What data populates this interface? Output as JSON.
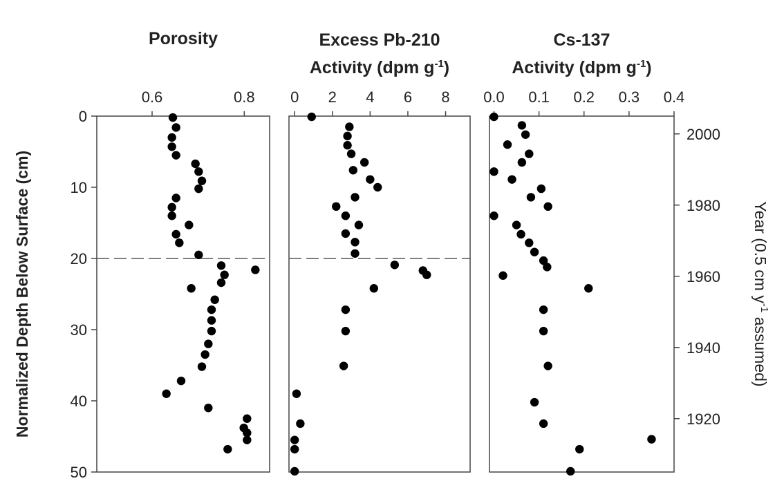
{
  "chart_data": [
    {
      "type": "scatter",
      "title": "Porosity",
      "x_ticks": [
        "0.6",
        "0.8"
      ],
      "xlim": [
        0.48,
        0.855
      ],
      "ylabel": "Normalized Depth Below Surface (cm)",
      "y_ticks": [
        "0",
        "10",
        "20",
        "30",
        "40",
        "50"
      ],
      "ylim": [
        0,
        50
      ],
      "y_inverted": true,
      "x_axis_position": "top",
      "reference_line_depth": 20,
      "points": [
        {
          "x": 0.645,
          "y": 0.2
        },
        {
          "x": 0.652,
          "y": 1.6
        },
        {
          "x": 0.643,
          "y": 3.0
        },
        {
          "x": 0.643,
          "y": 4.3
        },
        {
          "x": 0.652,
          "y": 5.5
        },
        {
          "x": 0.694,
          "y": 6.7
        },
        {
          "x": 0.701,
          "y": 7.8
        },
        {
          "x": 0.708,
          "y": 9.1
        },
        {
          "x": 0.701,
          "y": 10.2
        },
        {
          "x": 0.652,
          "y": 11.5
        },
        {
          "x": 0.643,
          "y": 12.8
        },
        {
          "x": 0.643,
          "y": 14.0
        },
        {
          "x": 0.68,
          "y": 15.3
        },
        {
          "x": 0.652,
          "y": 16.6
        },
        {
          "x": 0.659,
          "y": 17.8
        },
        {
          "x": 0.701,
          "y": 19.5
        },
        {
          "x": 0.75,
          "y": 21.0
        },
        {
          "x": 0.824,
          "y": 21.6
        },
        {
          "x": 0.757,
          "y": 22.3
        },
        {
          "x": 0.75,
          "y": 23.4
        },
        {
          "x": 0.685,
          "y": 24.2
        },
        {
          "x": 0.736,
          "y": 25.8
        },
        {
          "x": 0.729,
          "y": 27.2
        },
        {
          "x": 0.729,
          "y": 28.7
        },
        {
          "x": 0.729,
          "y": 30.2
        },
        {
          "x": 0.722,
          "y": 32.0
        },
        {
          "x": 0.715,
          "y": 33.5
        },
        {
          "x": 0.708,
          "y": 35.2
        },
        {
          "x": 0.663,
          "y": 37.2
        },
        {
          "x": 0.631,
          "y": 39.0
        },
        {
          "x": 0.722,
          "y": 41.0
        },
        {
          "x": 0.806,
          "y": 42.5
        },
        {
          "x": 0.799,
          "y": 43.8
        },
        {
          "x": 0.806,
          "y": 44.5
        },
        {
          "x": 0.806,
          "y": 45.5
        },
        {
          "x": 0.764,
          "y": 46.8
        }
      ]
    },
    {
      "type": "scatter",
      "title": "Excess Pb-210",
      "title_line2": "Activity (dpm g",
      "title_sup": "-1",
      "title_end": ")",
      "x_ticks": [
        "0",
        "2",
        "4",
        "6",
        "8"
      ],
      "xlim": [
        -0.3,
        9.3
      ],
      "ylim": [
        0,
        50
      ],
      "y_inverted": true,
      "x_axis_position": "top",
      "reference_line_depth": 20,
      "points": [
        {
          "x": 0.9,
          "y": 0.1
        },
        {
          "x": 2.9,
          "y": 1.5
        },
        {
          "x": 2.8,
          "y": 2.8
        },
        {
          "x": 2.8,
          "y": 4.1
        },
        {
          "x": 3.0,
          "y": 5.3
        },
        {
          "x": 3.7,
          "y": 6.5
        },
        {
          "x": 3.1,
          "y": 7.6
        },
        {
          "x": 4.0,
          "y": 8.9
        },
        {
          "x": 4.4,
          "y": 10.0
        },
        {
          "x": 3.2,
          "y": 11.4
        },
        {
          "x": 2.2,
          "y": 12.7
        },
        {
          "x": 2.7,
          "y": 14.0
        },
        {
          "x": 3.4,
          "y": 15.3
        },
        {
          "x": 2.7,
          "y": 16.5
        },
        {
          "x": 3.2,
          "y": 17.7
        },
        {
          "x": 3.2,
          "y": 19.3
        },
        {
          "x": 5.3,
          "y": 20.9
        },
        {
          "x": 6.8,
          "y": 21.7
        },
        {
          "x": 7.0,
          "y": 22.3
        },
        {
          "x": 4.2,
          "y": 24.2
        },
        {
          "x": 2.7,
          "y": 27.2
        },
        {
          "x": 2.7,
          "y": 30.2
        },
        {
          "x": 2.6,
          "y": 35.1
        },
        {
          "x": 0.1,
          "y": 39.0
        },
        {
          "x": 0.3,
          "y": 43.2
        },
        {
          "x": 0.0,
          "y": 45.5
        },
        {
          "x": 0.0,
          "y": 46.8
        },
        {
          "x": 0.0,
          "y": 49.9
        }
      ]
    },
    {
      "type": "scatter",
      "title": "Cs-137",
      "title_line2": "Activity (dpm g",
      "title_sup": "-1",
      "title_end": ")",
      "x_ticks": [
        "0.0",
        "0.1",
        "0.2",
        "0.3",
        "0.4"
      ],
      "xlim": [
        -0.01,
        0.4
      ],
      "ylim": [
        0,
        50
      ],
      "y_inverted": true,
      "x_axis_position": "top",
      "y2label": "Year (0.5 cm y",
      "y2label_sup": "-1",
      "y2label_end": " assumed)",
      "y2_ticks": [
        {
          "label": "2000",
          "depth": 2.5
        },
        {
          "label": "1980",
          "depth": 12.5
        },
        {
          "label": "1960",
          "depth": 22.5
        },
        {
          "label": "1940",
          "depth": 32.5
        },
        {
          "label": "1920",
          "depth": 42.5
        }
      ],
      "points": [
        {
          "x": 0.0,
          "y": 0.1
        },
        {
          "x": 0.062,
          "y": 1.3
        },
        {
          "x": 0.07,
          "y": 2.6
        },
        {
          "x": 0.03,
          "y": 4.0
        },
        {
          "x": 0.078,
          "y": 5.3
        },
        {
          "x": 0.062,
          "y": 6.5
        },
        {
          "x": 0.0,
          "y": 7.8
        },
        {
          "x": 0.04,
          "y": 8.9
        },
        {
          "x": 0.105,
          "y": 10.2
        },
        {
          "x": 0.082,
          "y": 11.4
        },
        {
          "x": 0.12,
          "y": 12.7
        },
        {
          "x": 0.0,
          "y": 14.0
        },
        {
          "x": 0.05,
          "y": 15.3
        },
        {
          "x": 0.06,
          "y": 16.6
        },
        {
          "x": 0.078,
          "y": 17.8
        },
        {
          "x": 0.09,
          "y": 19.1
        },
        {
          "x": 0.11,
          "y": 20.3
        },
        {
          "x": 0.118,
          "y": 21.2
        },
        {
          "x": 0.02,
          "y": 22.4
        },
        {
          "x": 0.21,
          "y": 24.2
        },
        {
          "x": 0.11,
          "y": 27.2
        },
        {
          "x": 0.11,
          "y": 30.2
        },
        {
          "x": 0.12,
          "y": 35.1
        },
        {
          "x": 0.09,
          "y": 40.2
        },
        {
          "x": 0.11,
          "y": 43.2
        },
        {
          "x": 0.35,
          "y": 45.4
        },
        {
          "x": 0.19,
          "y": 46.8
        },
        {
          "x": 0.17,
          "y": 49.9
        }
      ]
    }
  ]
}
